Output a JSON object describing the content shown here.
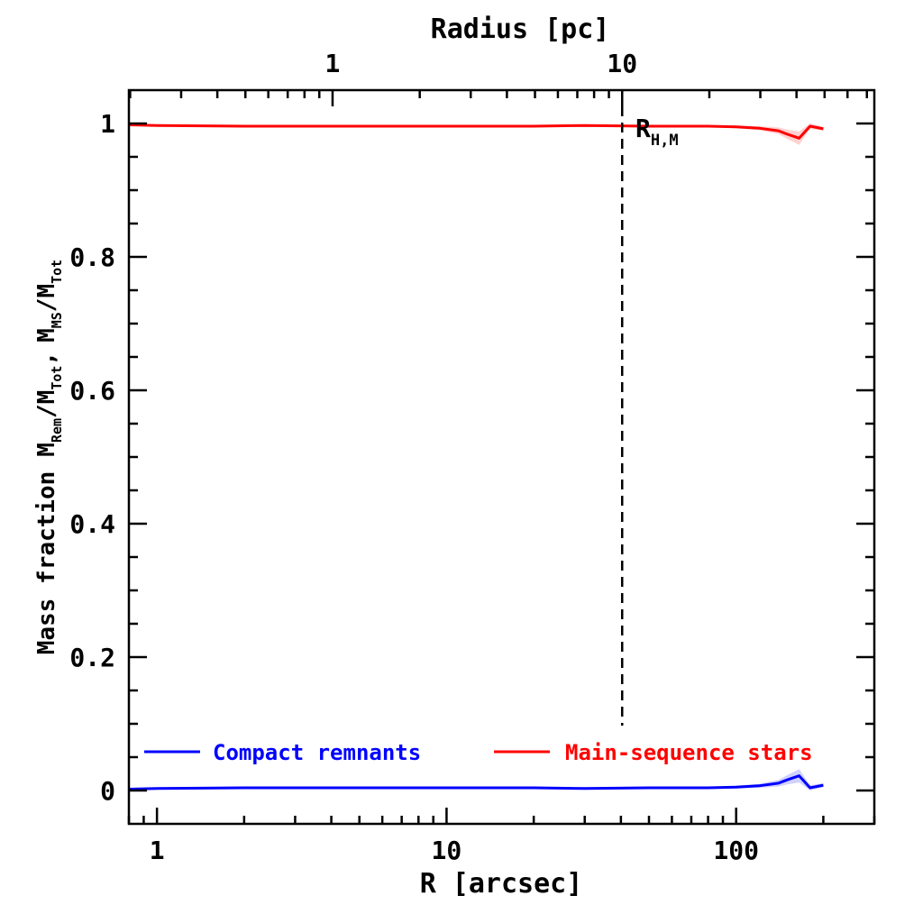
{
  "chart_data": {
    "type": "line",
    "title": "",
    "xlabel": "R [arcsec]",
    "ylabel": {
      "main": "Mass fraction",
      "m1": "M",
      "m1_sub": "Rem",
      "sep1": "/M",
      "m1_den_sub": "Tot",
      "comma": ",",
      "m2": "M",
      "m2_sub": "MS",
      "sep2": "/M",
      "m2_den_sub": "Tot"
    },
    "x2label": "Radius [pc]",
    "x_scale": "log",
    "xlim": [
      0.8,
      300
    ],
    "ylim": [
      -0.05,
      1.05
    ],
    "x_ticks": [
      1,
      10,
      100
    ],
    "x_tick_labels": [
      "1",
      "10",
      "100"
    ],
    "x2_ticks_arcsec": [
      4.04,
      40.4
    ],
    "x2_tick_labels": [
      "1",
      "10"
    ],
    "y_ticks": [
      0,
      0.2,
      0.4,
      0.6,
      0.8,
      1
    ],
    "y_tick_labels": [
      "0",
      "0.2",
      "0.4",
      "0.6",
      "0.8",
      "1"
    ],
    "vline": {
      "x": 40.4,
      "label_main": "R",
      "label_sub": "H,M"
    },
    "legend": {
      "placement": "bottom"
    },
    "series": [
      {
        "name": "Compact remnants",
        "color": "#0000ff",
        "x": [
          0.8,
          1,
          2,
          5,
          10,
          20,
          30,
          50,
          80,
          100,
          120,
          140,
          150,
          165,
          180,
          200
        ],
        "y": [
          0.002,
          0.003,
          0.004,
          0.004,
          0.004,
          0.004,
          0.003,
          0.004,
          0.004,
          0.005,
          0.007,
          0.011,
          0.016,
          0.022,
          0.004,
          0.008
        ],
        "band": [
          0.001,
          0.001,
          0.001,
          0.001,
          0.001,
          0.001,
          0.001,
          0.001,
          0.001,
          0.002,
          0.003,
          0.005,
          0.007,
          0.01,
          0.004,
          0.003
        ]
      },
      {
        "name": "Main-sequence stars",
        "color": "#ff0000",
        "x": [
          0.8,
          1,
          2,
          5,
          10,
          20,
          30,
          50,
          80,
          100,
          120,
          140,
          150,
          165,
          180,
          200
        ],
        "y": [
          0.998,
          0.997,
          0.996,
          0.996,
          0.996,
          0.996,
          0.997,
          0.996,
          0.996,
          0.995,
          0.993,
          0.989,
          0.984,
          0.978,
          0.996,
          0.992
        ],
        "band": [
          0.001,
          0.001,
          0.001,
          0.001,
          0.001,
          0.001,
          0.001,
          0.001,
          0.001,
          0.002,
          0.003,
          0.005,
          0.007,
          0.01,
          0.004,
          0.003
        ]
      }
    ]
  }
}
